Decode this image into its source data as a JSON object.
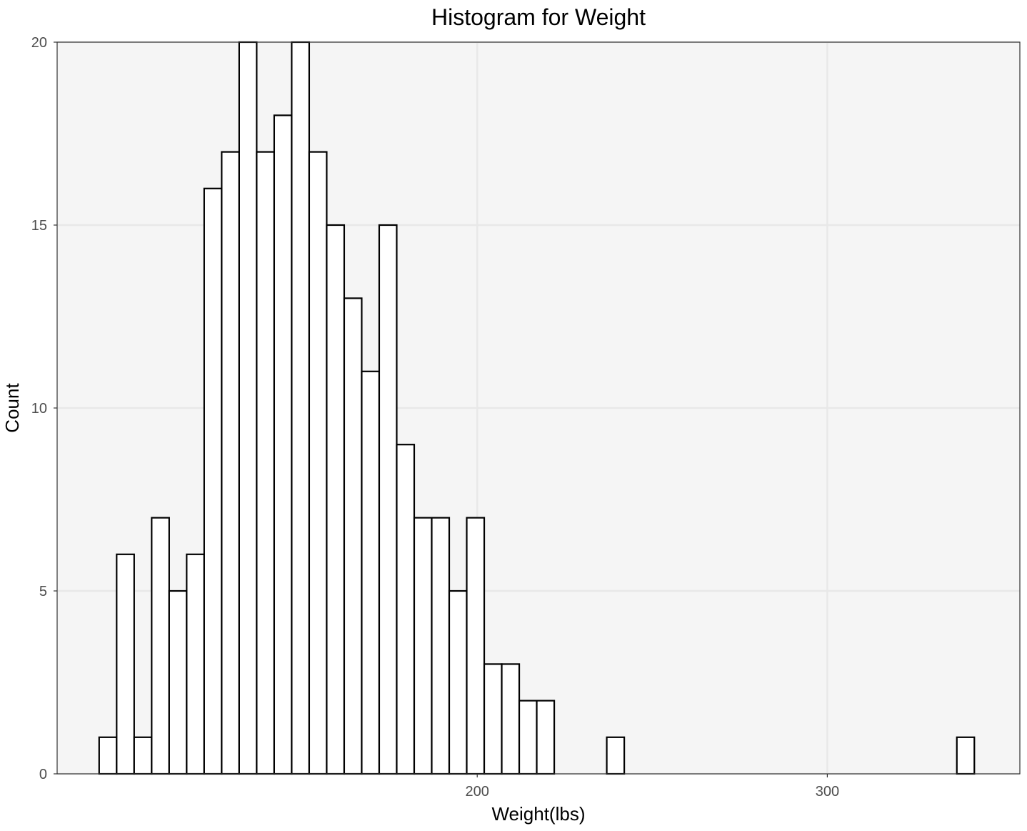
{
  "chart_data": {
    "type": "bar",
    "title": "Histogram for Weight",
    "xlabel": "Weight(lbs)",
    "ylabel": "Count",
    "xlim": [
      80,
      355
    ],
    "ylim": [
      0,
      20
    ],
    "x_ticks": [
      200,
      300
    ],
    "y_ticks": [
      0,
      5,
      10,
      15,
      20
    ],
    "grid": true,
    "colors": {
      "panel_background": "#f5f5f5",
      "grid": "#e8e8e8",
      "bar_fill": "#ffffff",
      "bar_outline": "#000000"
    },
    "bins": [
      {
        "x0": 92.0,
        "x1": 97.0,
        "count": 1
      },
      {
        "x0": 97.0,
        "x1": 102.0,
        "count": 6
      },
      {
        "x0": 102.0,
        "x1": 107.0,
        "count": 1
      },
      {
        "x0": 107.0,
        "x1": 112.0,
        "count": 7
      },
      {
        "x0": 112.0,
        "x1": 117.0,
        "count": 5
      },
      {
        "x0": 117.0,
        "x1": 122.0,
        "count": 6
      },
      {
        "x0": 122.0,
        "x1": 127.0,
        "count": 16
      },
      {
        "x0": 127.0,
        "x1": 132.0,
        "count": 17
      },
      {
        "x0": 132.0,
        "x1": 137.0,
        "count": 20
      },
      {
        "x0": 137.0,
        "x1": 142.0,
        "count": 17
      },
      {
        "x0": 142.0,
        "x1": 147.0,
        "count": 18
      },
      {
        "x0": 147.0,
        "x1": 152.0,
        "count": 20
      },
      {
        "x0": 152.0,
        "x1": 157.0,
        "count": 17
      },
      {
        "x0": 157.0,
        "x1": 162.0,
        "count": 15
      },
      {
        "x0": 162.0,
        "x1": 167.0,
        "count": 13
      },
      {
        "x0": 167.0,
        "x1": 172.0,
        "count": 11
      },
      {
        "x0": 172.0,
        "x1": 177.0,
        "count": 15
      },
      {
        "x0": 177.0,
        "x1": 182.0,
        "count": 9
      },
      {
        "x0": 182.0,
        "x1": 187.0,
        "count": 7
      },
      {
        "x0": 187.0,
        "x1": 192.0,
        "count": 7
      },
      {
        "x0": 192.0,
        "x1": 197.0,
        "count": 5
      },
      {
        "x0": 197.0,
        "x1": 202.0,
        "count": 7
      },
      {
        "x0": 202.0,
        "x1": 207.0,
        "count": 3
      },
      {
        "x0": 207.0,
        "x1": 212.0,
        "count": 3
      },
      {
        "x0": 212.0,
        "x1": 217.0,
        "count": 2
      },
      {
        "x0": 217.0,
        "x1": 222.0,
        "count": 2
      },
      {
        "x0": 237.0,
        "x1": 242.0,
        "count": 1
      },
      {
        "x0": 337.0,
        "x1": 342.0,
        "count": 1
      }
    ]
  }
}
